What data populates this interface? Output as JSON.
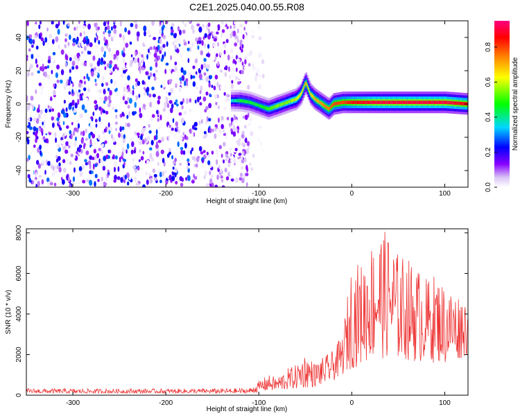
{
  "title": "C2E1.2025.040.00.55.R08",
  "chart_data": [
    {
      "type": "heatmap",
      "xlabel": "Height of straight line (km)",
      "ylabel": "Frequency (Hz)",
      "xlim": [
        -350,
        125
      ],
      "ylim": [
        -50,
        50
      ],
      "xticks": [
        -300,
        -200,
        -100,
        0,
        100
      ],
      "yticks": [
        -40,
        -20,
        0,
        20,
        40
      ],
      "regions": [
        {
          "name": "noise",
          "x_range": [
            -350,
            -110
          ],
          "y_range": [
            -50,
            50
          ],
          "amplitude_range": [
            0.0,
            0.3
          ]
        },
        {
          "name": "sparse-noise",
          "x_range": [
            -110,
            -95
          ],
          "y_range": [
            -50,
            50
          ],
          "amplitude_range": [
            0.0,
            0.1
          ]
        }
      ],
      "signal_trace": {
        "x": [
          -130,
          -120,
          -110,
          -100,
          -90,
          -80,
          -70,
          -60,
          -55,
          -50,
          -45,
          -40,
          -35,
          -30,
          -25,
          -20,
          -10,
          0,
          25,
          50,
          75,
          100,
          125
        ],
        "y": [
          2,
          2,
          1,
          -1,
          -3,
          -1,
          1,
          3,
          6,
          13,
          6,
          3,
          1,
          -1,
          -3,
          0,
          1,
          1,
          1,
          1,
          1,
          1,
          0
        ],
        "peak_amplitude": [
          0.35,
          0.45,
          0.45,
          0.45,
          0.5,
          0.55,
          0.55,
          0.6,
          0.65,
          0.7,
          0.65,
          0.7,
          0.7,
          0.75,
          0.75,
          0.8,
          0.8,
          0.85,
          0.9,
          0.9,
          0.9,
          0.9,
          0.85
        ]
      },
      "colorbar": {
        "label": "Normalized spectral amplitude",
        "range": [
          0.0,
          0.95
        ],
        "ticks": [
          0.0,
          0.2,
          0.4,
          0.6,
          0.8
        ],
        "colors": [
          "#ffffff",
          "#d9c2f5",
          "#8800ff",
          "#0000ff",
          "#00d8ff",
          "#00ff00",
          "#ffff00",
          "#ff8800",
          "#ff0000",
          "#ff0080"
        ]
      }
    },
    {
      "type": "line",
      "xlabel": "Height of straight line (km)",
      "ylabel": "SNR (10 * v/v)",
      "xlim": [
        -350,
        125
      ],
      "ylim": [
        0,
        8200
      ],
      "xticks": [
        -300,
        -200,
        -100,
        0,
        100
      ],
      "yticks": [
        0,
        2000,
        4000,
        6000,
        8000
      ],
      "series": [
        {
          "name": "SNR",
          "color": "#ee3333",
          "envelope_x": [
            -350,
            -300,
            -250,
            -200,
            -150,
            -110,
            -100,
            -90,
            -80,
            -70,
            -60,
            -50,
            -40,
            -30,
            -20,
            -10,
            0,
            10,
            20,
            30,
            40,
            50,
            60,
            70,
            80,
            90,
            100,
            110,
            125
          ],
          "envelope_low": [
            100,
            100,
            100,
            100,
            100,
            100,
            150,
            200,
            200,
            250,
            300,
            350,
            400,
            500,
            700,
            1000,
            1300,
            1500,
            1700,
            1800,
            1800,
            1700,
            1700,
            1600,
            1600,
            1600,
            1500,
            1600,
            2000
          ],
          "envelope_high": [
            330,
            320,
            320,
            320,
            330,
            350,
            700,
            1000,
            900,
            1300,
            1500,
            2100,
            1600,
            1900,
            2200,
            3000,
            6600,
            6500,
            7500,
            8200,
            8000,
            7000,
            6800,
            6400,
            5800,
            6000,
            5500,
            5200,
            4800
          ]
        }
      ]
    }
  ]
}
